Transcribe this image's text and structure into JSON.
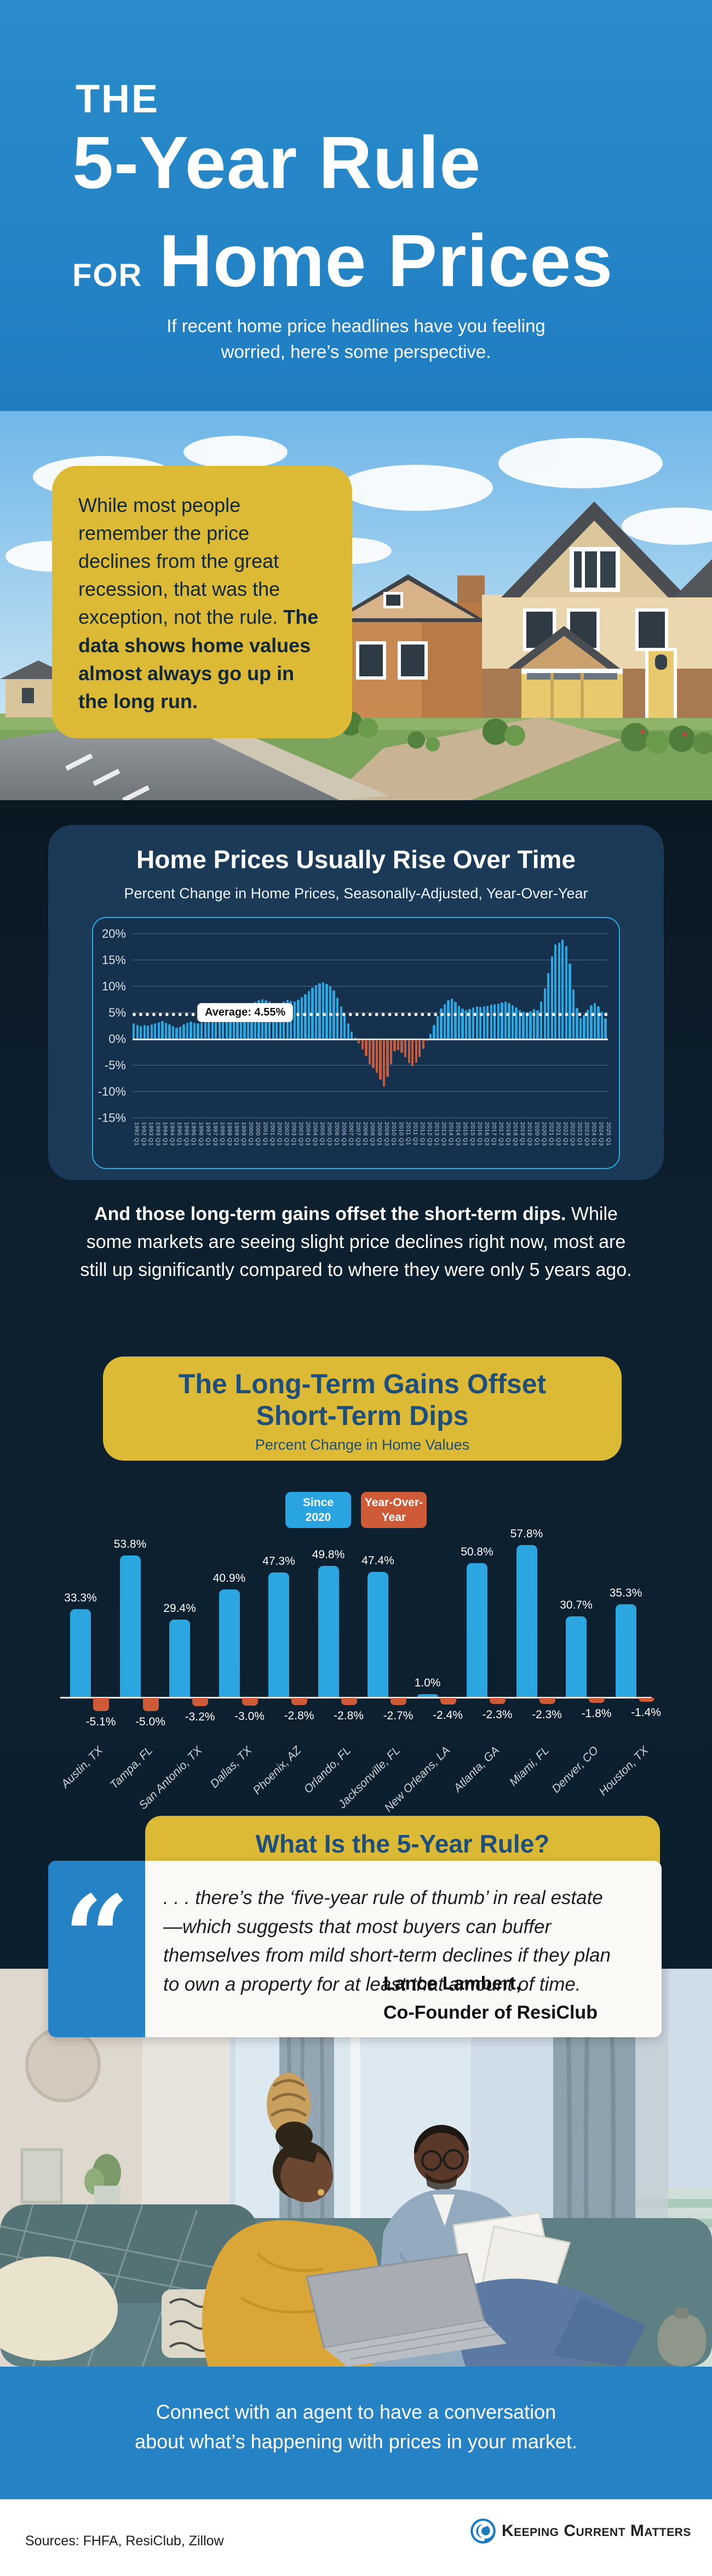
{
  "header": {
    "kicker": "THE",
    "title": "5-Year Rule",
    "for_word": "FOR",
    "title2": "Home Prices",
    "subtitle_line1": "If recent home price headlines have you feeling",
    "subtitle_line2": "worried, here’s some perspective."
  },
  "hero_callout": {
    "text_regular": "While most people remember the price declines from the great recession, that was the exception, not the rule. ",
    "text_bold": "The data shows home values almost always go up in the long run."
  },
  "section_rise": {
    "title": "Home Prices Usually Rise Over Time",
    "subtitle": "Percent Change in Home Prices, Seasonally-Adjusted, Year-Over-Year",
    "average_label": "Average: 4.55%"
  },
  "mid_paragraph": {
    "bold": "And those long-term gains offset the short-term dips.",
    "regular": " While some markets are seeing slight price declines right now, most are still up significantly compared to where they were only 5 years ago."
  },
  "section_offset": {
    "title_line1": "The Long-Term Gains Offset",
    "title_line2": "Short-Term Dips",
    "subtitle": "Percent Change in Home Values",
    "legend_blue_line1": "Since",
    "legend_blue_line2": "2020",
    "legend_orange_line1": "Year-Over-",
    "legend_orange_line2": "Year"
  },
  "rule_section": {
    "heading": "What Is the 5-Year Rule?",
    "quote_mark": "“",
    "quote": ". . . there’s the ‘five-year rule of thumb’ in real estate—which suggests that most buyers can buffer themselves from mild short-term declines if they plan to own a property for at least that amount of time.",
    "attribution_name": "Lance Lambert,",
    "attribution_title": "Co-Founder of ResiClub"
  },
  "cta": {
    "line1": "Connect with an agent to have a conversation",
    "line2": "about what’s happening with prices in your market."
  },
  "footer": {
    "sources": "Sources: FHFA, ResiClub, Zillow",
    "logo_text": "Keeping Current Matters"
  },
  "colors": {
    "brand_blue": "#2484c6",
    "dark_navy_bg": "#0c1f2e",
    "card_navy": "#1a3a58",
    "panel_border_cyan": "#2fa9e2",
    "bar_blue": "#2ca6e0",
    "bar_orange": "#cf5a37",
    "negative_orange": "#c75b3d",
    "accent_yellow": "#dcba35",
    "yellow_box_text_navy": "#1d4e7c",
    "quote_card_bg": "#faf9f6"
  },
  "chart_data": [
    {
      "type": "bar",
      "title": "Home Prices Usually Rise Over Time",
      "subtitle": "Percent Change in Home Prices, Seasonally-Adjusted, Year-Over-Year",
      "ylim": [
        -15,
        20
      ],
      "yticks": [
        20,
        15,
        10,
        5,
        0,
        -5,
        -10,
        -15
      ],
      "ytick_labels": [
        "20%",
        "15%",
        "10%",
        "5%",
        "0%",
        "-5%",
        "-10%",
        "-15%"
      ],
      "grid": true,
      "average": 4.55,
      "average_label": "Average: 4.55%",
      "positive_color": "#2ca6e0",
      "negative_color": "#c75b3d",
      "x_unit": "quarter",
      "x_range": "1992 Q1 – 2025 Q1",
      "x_tick_labels": [
        "1992 Q1",
        "1992 Q3",
        "1993 Q1",
        "1993 Q3",
        "1994 Q1",
        "1994 Q3",
        "1995 Q1",
        "1995 Q3",
        "1996 Q1",
        "1996 Q3",
        "1997 Q1",
        "1997 Q3",
        "1998 Q1",
        "1998 Q3",
        "1999 Q1",
        "1999 Q3",
        "2000 Q1",
        "2000 Q3",
        "2001 Q1",
        "2001 Q3",
        "2002 Q1",
        "2002 Q3",
        "2003 Q1",
        "2003 Q3",
        "2004 Q1",
        "2004 Q3",
        "2005 Q1",
        "2005 Q3",
        "2006 Q1",
        "2006 Q3",
        "2007 Q1",
        "2007 Q3",
        "2008 Q1",
        "2008 Q3",
        "2009 Q1",
        "2009 Q3",
        "2010 Q1",
        "2010 Q3",
        "2011 Q1",
        "2011 Q3",
        "2012 Q1",
        "2012 Q3",
        "2013 Q1",
        "2013 Q3",
        "2014 Q1",
        "2014 Q3",
        "2015 Q1",
        "2015 Q3",
        "2016 Q1",
        "2016 Q3",
        "2017 Q1",
        "2017 Q3",
        "2018 Q1",
        "2018 Q3",
        "2019 Q1",
        "2019 Q3",
        "2020 Q1",
        "2020 Q3",
        "2021 Q1",
        "2021 Q3",
        "2022 Q1",
        "2022 Q3",
        "2023 Q1",
        "2023 Q3",
        "2024 Q1",
        "2024 Q3",
        "2025 Q1"
      ],
      "values": [
        2.9,
        2.6,
        2.4,
        2.6,
        2.5,
        2.7,
        2.9,
        3.1,
        3.3,
        3.0,
        2.7,
        2.4,
        2.1,
        2.3,
        2.7,
        3.0,
        3.2,
        3.0,
        2.9,
        3.0,
        3.1,
        3.3,
        3.7,
        4.1,
        4.5,
        4.9,
        5.2,
        5.3,
        5.2,
        5.4,
        5.7,
        6.1,
        6.4,
        6.7,
        7.0,
        7.3,
        7.5,
        7.3,
        7.1,
        6.8,
        6.6,
        6.8,
        7.1,
        7.4,
        7.2,
        7.1,
        7.4,
        7.9,
        8.4,
        9.1,
        9.7,
        10.2,
        10.5,
        10.7,
        10.4,
        10.0,
        9.2,
        7.8,
        6.1,
        4.4,
        2.9,
        1.4,
        0.2,
        -0.8,
        -1.9,
        -3.2,
        -4.7,
        -5.5,
        -6.4,
        -7.7,
        -9.0,
        -7.1,
        -4.7,
        -2.2,
        -2.0,
        -2.5,
        -3.4,
        -4.5,
        -5.0,
        -4.4,
        -3.4,
        -1.8,
        -0.4,
        0.9,
        2.6,
        4.4,
        5.7,
        6.6,
        7.3,
        7.6,
        7.0,
        6.3,
        5.7,
        5.4,
        5.6,
        5.9,
        6.1,
        6.0,
        6.1,
        6.3,
        6.5,
        6.6,
        6.7,
        6.9,
        7.1,
        6.8,
        6.4,
        5.9,
        5.4,
        5.1,
        5.0,
        5.2,
        5.6,
        5.4,
        7.1,
        9.6,
        12.5,
        15.6,
        17.9,
        18.2,
        18.9,
        17.6,
        14.3,
        9.4,
        5.8,
        4.0,
        4.5,
        5.5,
        6.4,
        6.8,
        6.1,
        5.1,
        3.9
      ]
    },
    {
      "type": "bar",
      "title": "The Long-Term Gains Offset Short-Term Dips",
      "subtitle": "Percent Change in Home Values",
      "legend_position": "top",
      "categories": [
        "Austin, TX",
        "Tampa, FL",
        "San Antonio, TX",
        "Dallas, TX",
        "Phoenix, AZ",
        "Orlando, FL",
        "Jacksonville, FL",
        "New Orleans, LA",
        "Atlanta, GA",
        "Miami, FL",
        "Denver, CO",
        "Houston, TX"
      ],
      "series": [
        {
          "name": "Since 2020",
          "color": "#2ca6e0",
          "values": [
            33.3,
            53.8,
            29.4,
            40.9,
            47.3,
            49.8,
            47.4,
            1.0,
            50.8,
            57.8,
            30.7,
            35.3
          ]
        },
        {
          "name": "Year-Over-Year",
          "color": "#cf5a37",
          "values": [
            -5.1,
            -5.0,
            -3.2,
            -3.0,
            -2.8,
            -2.8,
            -2.7,
            -2.4,
            -2.3,
            -2.3,
            -1.8,
            -1.4
          ]
        }
      ]
    }
  ]
}
